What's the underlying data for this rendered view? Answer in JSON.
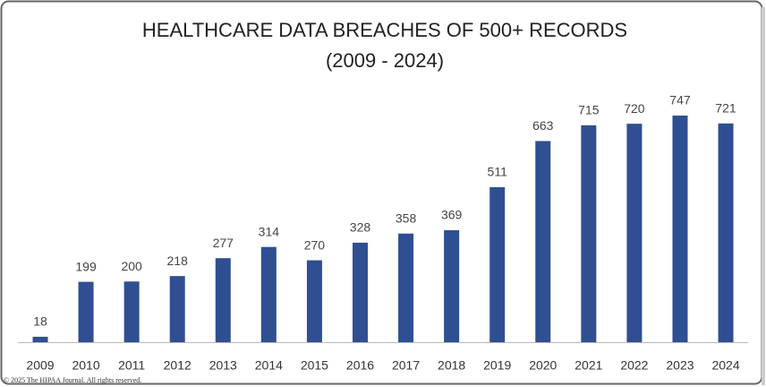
{
  "chart_data": {
    "type": "bar",
    "title": "HEALTHCARE DATA BREACHES OF 500+ RECORDS",
    "subtitle": "(2009 - 2024)",
    "categories": [
      "2009",
      "2010",
      "2011",
      "2012",
      "2013",
      "2014",
      "2015",
      "2016",
      "2017",
      "2018",
      "2019",
      "2020",
      "2021",
      "2022",
      "2023",
      "2024"
    ],
    "values": [
      18,
      199,
      200,
      218,
      277,
      314,
      270,
      328,
      358,
      369,
      511,
      663,
      715,
      720,
      747,
      721
    ],
    "color": "#2f4f92",
    "copyright": "© 2025 The HIPAA Journal. All rights reserved."
  }
}
